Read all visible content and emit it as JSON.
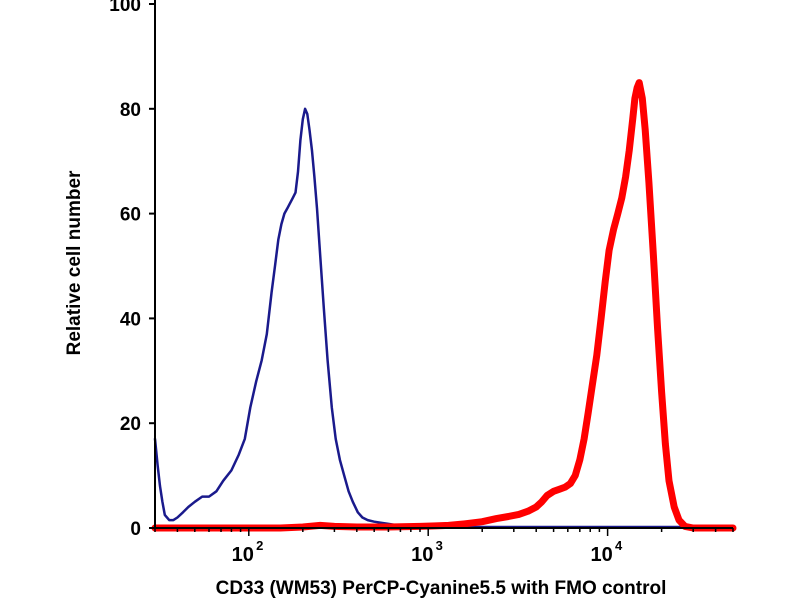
{
  "chart_data": {
    "type": "line",
    "title": "",
    "xlabel": "CD33 (WM53) PerCP-Cyanine5.5 with FMO control",
    "ylabel": "Relative cell number",
    "x_scale": "log",
    "xlim": [
      30,
      50000
    ],
    "ylim": [
      0,
      100
    ],
    "grid": false,
    "legend": "none",
    "y_ticks": [
      "0",
      "20",
      "40",
      "60",
      "80",
      "100"
    ],
    "y_tick_values": [
      0,
      20,
      40,
      60,
      80,
      100
    ],
    "x_ticks": [
      {
        "base": "10",
        "exp": "2",
        "value": 100
      },
      {
        "base": "10",
        "exp": "3",
        "value": 1000
      },
      {
        "base": "10",
        "exp": "4",
        "value": 10000
      }
    ],
    "series": [
      {
        "color": "#1a1a8c",
        "x": [
          30,
          31,
          32,
          33,
          34,
          36,
          38,
          40,
          43,
          46,
          50,
          55,
          60,
          66,
          72,
          80,
          88,
          95,
          102,
          110,
          118,
          126,
          134,
          140,
          146,
          152,
          158,
          164,
          170,
          176,
          182,
          188,
          194,
          200,
          206,
          212,
          218,
          225,
          232,
          240,
          250,
          262,
          275,
          290,
          305,
          322,
          340,
          360,
          380,
          405,
          430,
          460,
          500,
          550,
          600,
          650,
          700,
          750,
          800,
          900,
          1000,
          1100,
          1200,
          1300,
          1350,
          1450,
          1550,
          1700,
          2000,
          2500,
          3000,
          4000,
          5000,
          7000,
          10000,
          15000,
          20000,
          30000,
          40000,
          50000
        ],
        "y": [
          17,
          12,
          8,
          5,
          2.5,
          1.5,
          1.5,
          2,
          3,
          4,
          5,
          6,
          6,
          7,
          9,
          11,
          14,
          17,
          23,
          28,
          32,
          37,
          45,
          50,
          55,
          58,
          60,
          61,
          62,
          63,
          64,
          68,
          74,
          78,
          80,
          79,
          76,
          72,
          67,
          61,
          52,
          42,
          32,
          23,
          17,
          13,
          10,
          7,
          5,
          3,
          2,
          1.5,
          1.2,
          1,
          0.8,
          0.6,
          0.4,
          0.3,
          0.3,
          0.3,
          0.3,
          0.3,
          0.4,
          0.5,
          0.9,
          0.5,
          0.3,
          0.2,
          0.2,
          0.2,
          0.2,
          0.2,
          0.2,
          0.2,
          0.2,
          0.2,
          0.2,
          0.2,
          0.2,
          0.2
        ]
      },
      {
        "color": "#ff0000",
        "x": [
          30,
          50,
          80,
          100,
          150,
          200,
          250,
          300,
          400,
          600,
          900,
          1100,
          1300,
          1600,
          2000,
          2400,
          2800,
          3200,
          3600,
          4000,
          4300,
          4600,
          5000,
          5400,
          5800,
          6200,
          6600,
          7000,
          7400,
          7800,
          8200,
          8700,
          9200,
          9700,
          10200,
          10800,
          11400,
          12000,
          12600,
          13200,
          13800,
          14200,
          14600,
          15000,
          15600,
          16200,
          17000,
          18000,
          19000,
          20000,
          21000,
          22000,
          23500,
          25000,
          27000,
          30000,
          40000,
          50000
        ],
        "y": [
          0,
          0,
          0,
          0,
          0,
          0.2,
          0.5,
          0.3,
          0.2,
          0.2,
          0.3,
          0.4,
          0.5,
          0.8,
          1.2,
          1.8,
          2.2,
          2.6,
          3.2,
          4,
          5,
          6.2,
          7,
          7.4,
          7.8,
          8.5,
          10,
          13,
          17,
          22,
          27,
          33,
          40,
          47,
          53,
          57,
          60,
          63,
          67,
          72,
          78,
          82,
          84,
          85,
          82,
          76,
          66,
          52,
          38,
          26,
          16,
          9,
          4,
          1.5,
          0.3,
          0,
          0,
          0
        ]
      }
    ]
  }
}
